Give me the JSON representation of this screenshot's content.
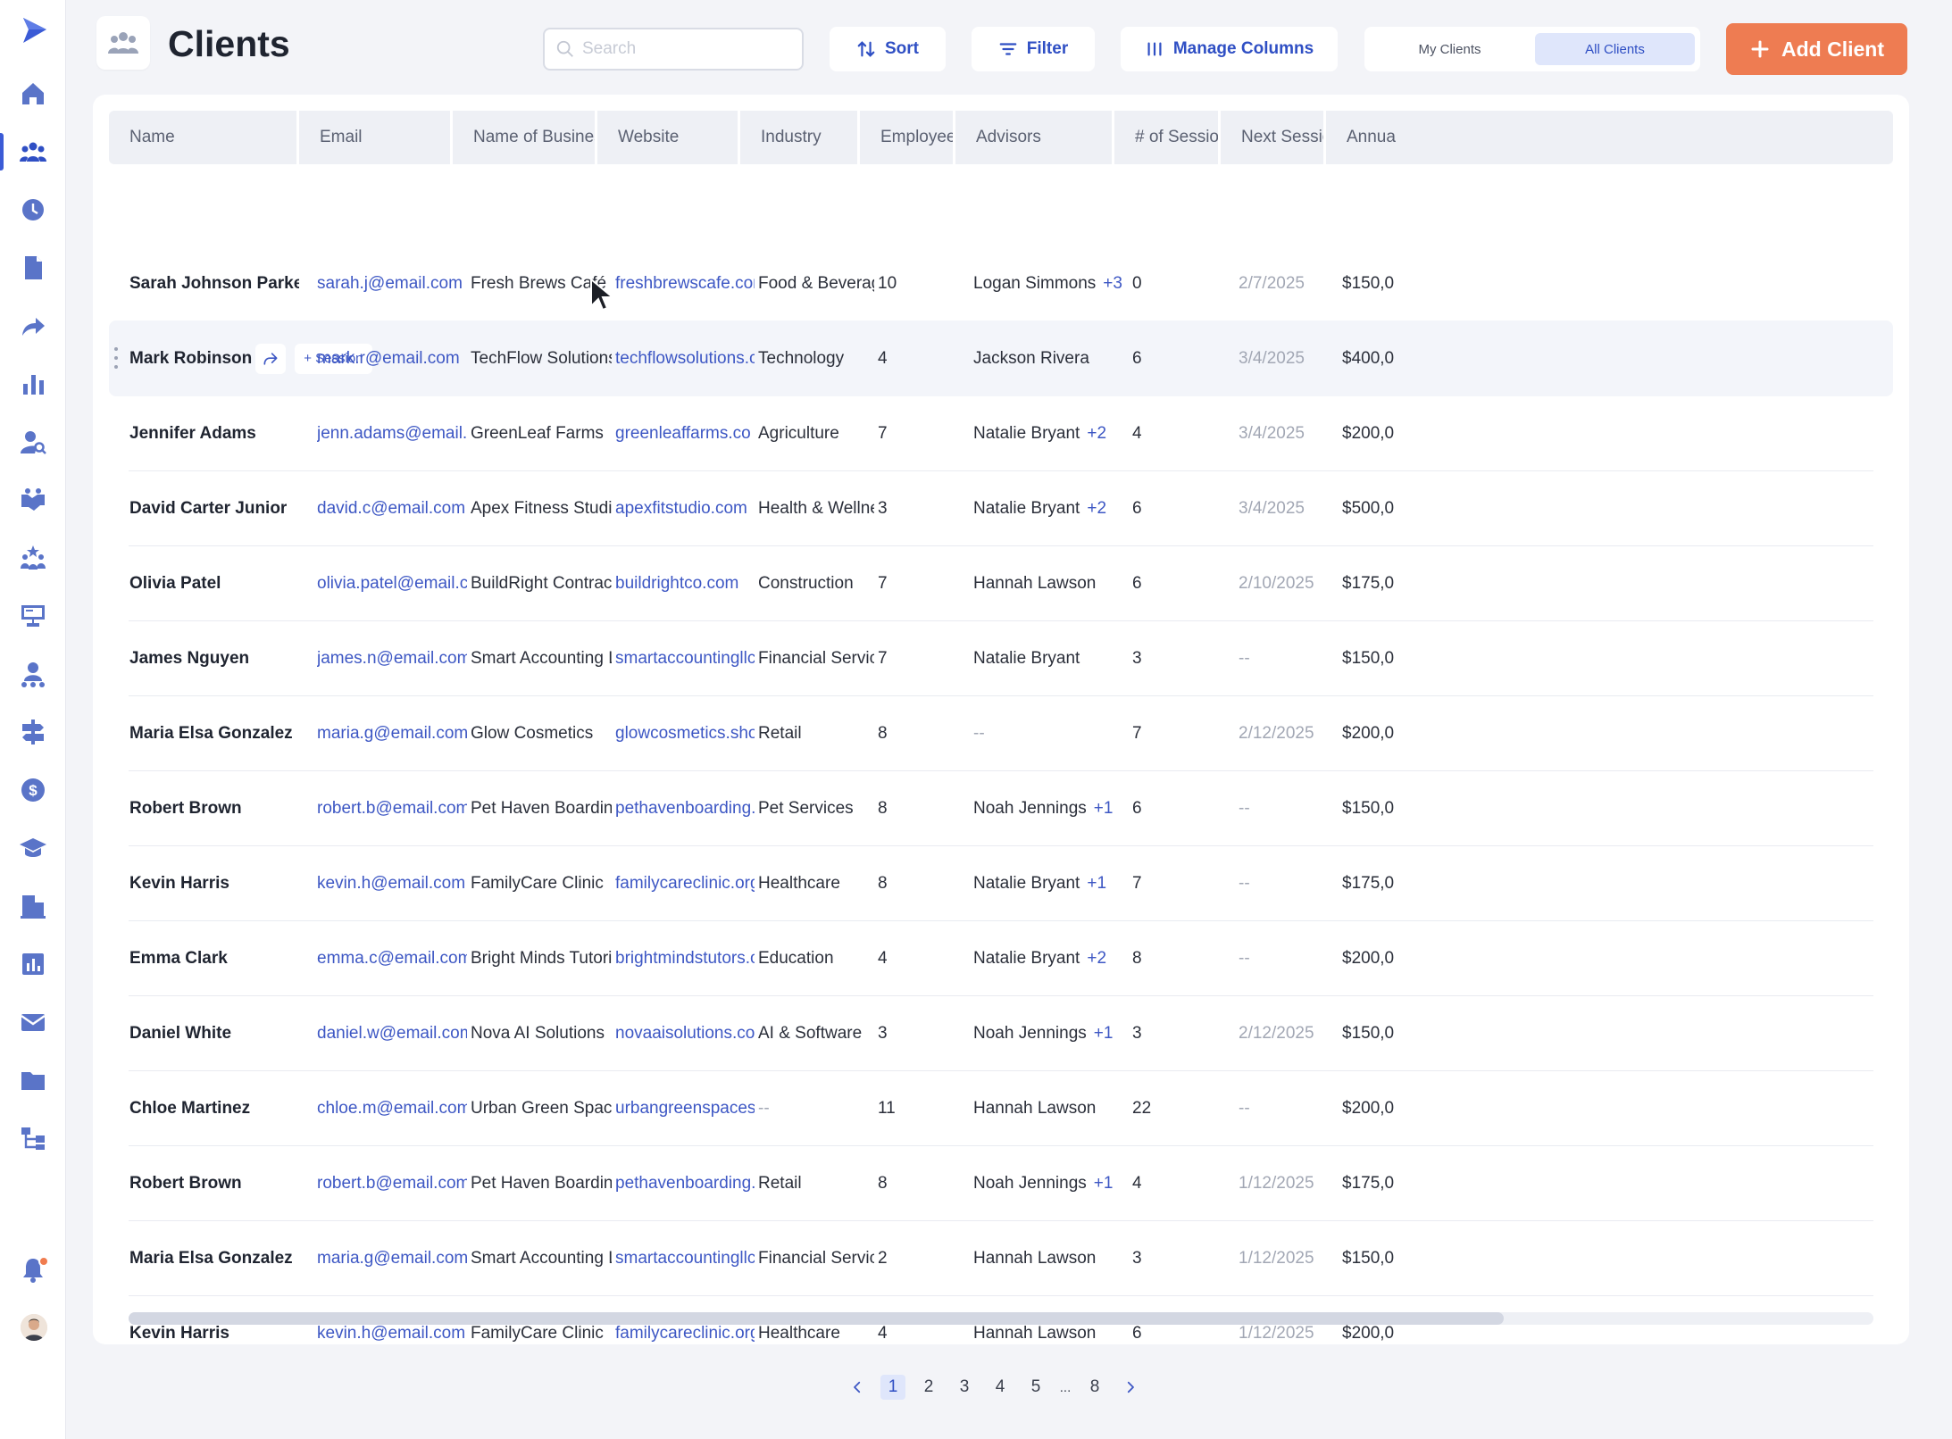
{
  "app": {
    "title": "Clients",
    "accent": "#2f4fc4",
    "cta_color": "#ee7c52"
  },
  "sidebar": {
    "items": [
      {
        "icon": "home-icon"
      },
      {
        "icon": "clients-icon",
        "active": true
      },
      {
        "icon": "clock-icon"
      },
      {
        "icon": "document-icon"
      },
      {
        "icon": "share-icon"
      },
      {
        "icon": "bar-chart-icon"
      },
      {
        "icon": "user-search-icon"
      },
      {
        "icon": "handshake-icon"
      },
      {
        "icon": "team-star-icon"
      },
      {
        "icon": "presentation-icon"
      },
      {
        "icon": "user-network-icon"
      },
      {
        "icon": "signpost-icon"
      },
      {
        "icon": "dollar-icon"
      },
      {
        "icon": "graduation-cap-icon"
      },
      {
        "icon": "building-icon"
      },
      {
        "icon": "report-icon"
      },
      {
        "icon": "mail-icon"
      },
      {
        "icon": "folder-icon"
      },
      {
        "icon": "workflow-icon"
      }
    ],
    "bottom": [
      {
        "icon": "bell-icon"
      },
      {
        "icon": "avatar"
      }
    ]
  },
  "toolbar": {
    "search_placeholder": "Search",
    "sort_label": "Sort",
    "filter_label": "Filter",
    "manage_columns_label": "Manage Columns",
    "segments": [
      "My Clients",
      "All Clients"
    ],
    "active_segment": "All Clients",
    "add_label": "Add Client"
  },
  "table": {
    "columns": [
      "Name",
      "Email",
      "Name of Business",
      "Website",
      "Industry",
      "Employees",
      "Advisors",
      "# of Sessions",
      "Next Session",
      "Annua"
    ],
    "hover_row_actions": {
      "session_label": "+ Session"
    },
    "rows": [
      {
        "name": "Sarah Johnson Parker",
        "email": "sarah.j@email.com",
        "business": "Fresh Brews Café",
        "website": "freshbrewscafe.com",
        "industry": "Food & Beverage",
        "employees": "10",
        "advisor": "Logan Simmons",
        "advisor_more": "+3",
        "sessions": "0",
        "next": "2/7/2025",
        "annual": "$150,0"
      },
      {
        "name": "Mark Robinson",
        "email": "mark.r@email.com",
        "business": "TechFlow Solutions",
        "website": "techflowsolutions.com",
        "industry": "Technology",
        "employees": "4",
        "advisor": "Jackson Rivera",
        "advisor_more": "",
        "sessions": "6",
        "next": "3/4/2025",
        "annual": "$400,0",
        "hover": true
      },
      {
        "name": "Jennifer Adams",
        "email": "jenn.adams@email.com",
        "business": "GreenLeaf Farms",
        "website": "greenleaffarms.co",
        "industry": "Agriculture",
        "employees": "7",
        "advisor": "Natalie Bryant",
        "advisor_more": "+2",
        "sessions": "4",
        "next": "3/4/2025",
        "annual": "$200,0"
      },
      {
        "name": "David Carter Junior",
        "email": "david.c@email.com",
        "business": "Apex Fitness Studio",
        "website": "apexfitstudio.com",
        "industry": "Health & Wellness",
        "employees": "3",
        "advisor": "Natalie Bryant",
        "advisor_more": "+2",
        "sessions": "6",
        "next": "3/4/2025",
        "annual": "$500,0"
      },
      {
        "name": "Olivia Patel",
        "email": "olivia.patel@email.com",
        "business": "BuildRight Contractors",
        "website": "buildrightco.com",
        "industry": "Construction",
        "employees": "7",
        "advisor": "Hannah Lawson",
        "advisor_more": "",
        "sessions": "6",
        "next": "2/10/2025",
        "annual": "$175,0"
      },
      {
        "name": "James Nguyen",
        "email": "james.n@email.com",
        "business": "Smart Accounting LLC",
        "website": "smartaccountingllc.com",
        "industry": "Financial Services",
        "employees": "7",
        "advisor": "Natalie Bryant",
        "advisor_more": "",
        "sessions": "3",
        "next": "--",
        "annual": "$150,0"
      },
      {
        "name": "Maria Elsa Gonzalez",
        "email": "maria.g@email.com",
        "business": "Glow Cosmetics",
        "website": "glowcosmetics.shop",
        "industry": "Retail",
        "employees": "8",
        "advisor": "--",
        "advisor_more": "",
        "sessions": "7",
        "next": "2/12/2025",
        "annual": "$200,0"
      },
      {
        "name": "Robert Brown",
        "email": "robert.b@email.com",
        "business": "Pet Haven Boarding",
        "website": "pethavenboarding.com",
        "industry": "Pet Services",
        "employees": "8",
        "advisor": "Noah Jennings",
        "advisor_more": "+1",
        "sessions": "6",
        "next": "--",
        "annual": "$150,0"
      },
      {
        "name": "Kevin Harris",
        "email": "kevin.h@email.com",
        "business": "FamilyCare Clinic",
        "website": "familycareclinic.org",
        "industry": "Healthcare",
        "employees": "8",
        "advisor": "Natalie Bryant",
        "advisor_more": "+1",
        "sessions": "7",
        "next": "--",
        "annual": "$175,0"
      },
      {
        "name": "Emma Clark",
        "email": "emma.c@email.com",
        "business": "Bright Minds Tutoring",
        "website": "brightmindstutors.org",
        "industry": "Education",
        "employees": "4",
        "advisor": "Natalie Bryant",
        "advisor_more": "+2",
        "sessions": "8",
        "next": "--",
        "annual": "$200,0"
      },
      {
        "name": "Daniel White",
        "email": "daniel.w@email.com",
        "business": "Nova AI Solutions",
        "website": "novaaisolutions.com",
        "industry": "AI & Software",
        "employees": "3",
        "advisor": "Noah Jennings",
        "advisor_more": "+1",
        "sessions": "3",
        "next": "2/12/2025",
        "annual": "$150,0"
      },
      {
        "name": "Chloe Martinez",
        "email": "chloe.m@email.com",
        "business": "Urban Green Spaces",
        "website": "urbangreenspaces.net",
        "industry": "--",
        "employees": "11",
        "advisor": "Hannah Lawson",
        "advisor_more": "",
        "sessions": "22",
        "next": "--",
        "annual": "$200,0"
      },
      {
        "name": "Robert Brown",
        "email": "robert.b@email.com",
        "business": "Pet Haven Boarding",
        "website": "pethavenboarding.com",
        "industry": "Retail",
        "employees": "8",
        "advisor": "Noah Jennings",
        "advisor_more": "+1",
        "sessions": "4",
        "next": "1/12/2025",
        "annual": "$175,0"
      },
      {
        "name": "Maria Elsa Gonzalez",
        "email": "maria.g@email.com",
        "business": "Smart Accounting LLC",
        "website": "smartaccountingllc.com",
        "industry": "Financial Services",
        "employees": "2",
        "advisor": "Hannah Lawson",
        "advisor_more": "",
        "sessions": "3",
        "next": "1/12/2025",
        "annual": "$150,0"
      },
      {
        "name": "Kevin Harris",
        "email": "kevin.h@email.com",
        "business": "FamilyCare Clinic",
        "website": "familycareclinic.org",
        "industry": "Healthcare",
        "employees": "4",
        "advisor": "Hannah Lawson",
        "advisor_more": "",
        "sessions": "6",
        "next": "1/12/2025",
        "annual": "$200,0"
      }
    ]
  },
  "pagination": {
    "pages": [
      "1",
      "2",
      "3",
      "4",
      "5",
      "...",
      "8"
    ],
    "current": "1"
  }
}
